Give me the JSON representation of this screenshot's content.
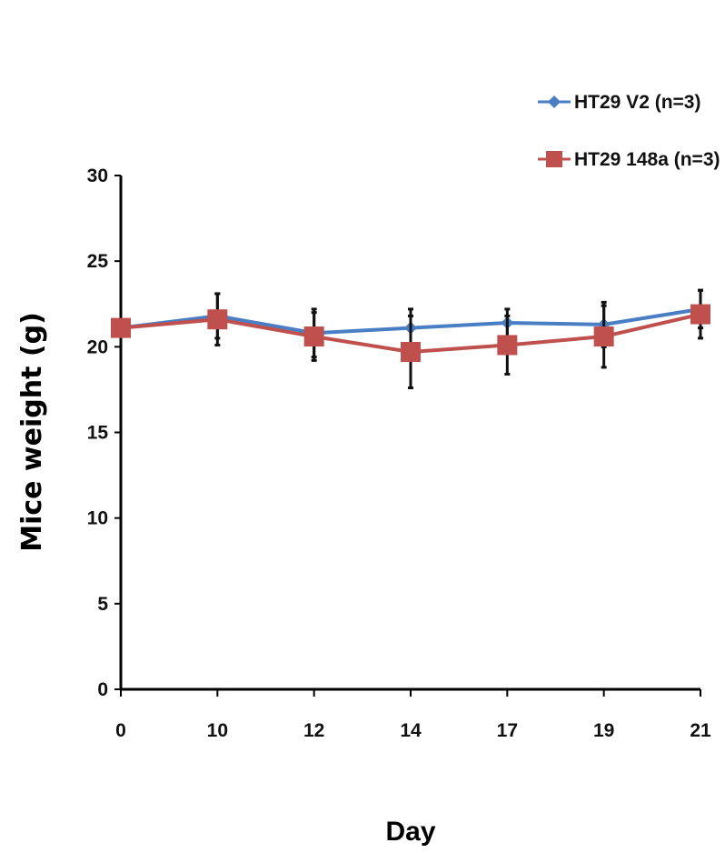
{
  "chart_data": {
    "type": "line",
    "categories": [
      "0",
      "10",
      "12",
      "14",
      "17",
      "19",
      "21"
    ],
    "xlabel": "Day",
    "ylabel": "Mice weight (g)",
    "ylim": [
      0,
      30
    ],
    "yticks": [
      0,
      5,
      10,
      15,
      20,
      25,
      30
    ],
    "grid": false,
    "legend_position": "top-right",
    "series": [
      {
        "name": "HT29 V2 (n=3)",
        "color": "#4a7ec4",
        "marker": "diamond",
        "values": [
          21.1,
          21.8,
          20.8,
          21.1,
          21.4,
          21.3,
          22.2
        ],
        "errors": [
          0.4,
          1.3,
          1.4,
          1.1,
          0.8,
          1.3,
          1.1
        ]
      },
      {
        "name": "HT29 148a (n=3)",
        "color": "#c0504d",
        "marker": "square",
        "values": [
          21.1,
          21.6,
          20.6,
          19.7,
          20.1,
          20.6,
          21.9
        ],
        "errors": [
          0.4,
          1.5,
          1.4,
          2.1,
          1.7,
          1.8,
          1.4
        ]
      }
    ]
  }
}
